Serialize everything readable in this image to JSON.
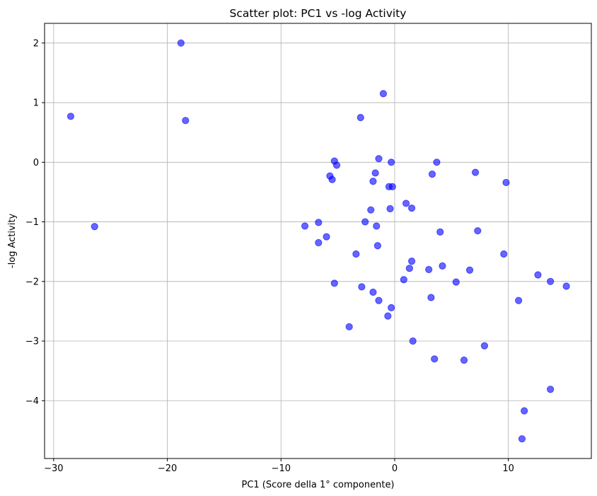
{
  "chart_data": {
    "type": "scatter",
    "title": "Scatter plot: PC1 vs -log Activity",
    "xlabel": "PC1 (Score della 1° componente)",
    "ylabel": "-log Activity",
    "xlim": [
      -30.8,
      17.3
    ],
    "ylim": [
      -4.97,
      2.33
    ],
    "xticks": [
      -30,
      -20,
      -10,
      0,
      10
    ],
    "xtick_labels": [
      "−30",
      "−20",
      "−10",
      "0",
      "10"
    ],
    "yticks": [
      2,
      1,
      0,
      -1,
      -2,
      -3,
      -4
    ],
    "ytick_labels": [
      "2",
      "1",
      "0",
      "−1",
      "−2",
      "−3",
      "−4"
    ],
    "grid": true,
    "marker_color": "#0000ff",
    "marker_alpha": 0.6,
    "points": [
      {
        "x": -28.5,
        "y": 0.77
      },
      {
        "x": -26.4,
        "y": -1.08
      },
      {
        "x": -18.8,
        "y": 2.0
      },
      {
        "x": -18.4,
        "y": 0.7
      },
      {
        "x": -7.9,
        "y": -1.07
      },
      {
        "x": -6.7,
        "y": -1.01
      },
      {
        "x": -6.7,
        "y": -1.35
      },
      {
        "x": -6.0,
        "y": -1.25
      },
      {
        "x": -5.7,
        "y": -0.23
      },
      {
        "x": -5.5,
        "y": -0.29
      },
      {
        "x": -5.3,
        "y": 0.02
      },
      {
        "x": -5.1,
        "y": -0.05
      },
      {
        "x": -5.3,
        "y": -2.03
      },
      {
        "x": -4.0,
        "y": -2.76
      },
      {
        "x": -3.4,
        "y": -1.54
      },
      {
        "x": -3.0,
        "y": 0.75
      },
      {
        "x": -2.9,
        "y": -2.09
      },
      {
        "x": -2.6,
        "y": -1.0
      },
      {
        "x": -2.1,
        "y": -0.8
      },
      {
        "x": -1.9,
        "y": -0.32
      },
      {
        "x": -1.9,
        "y": -2.18
      },
      {
        "x": -1.7,
        "y": -0.18
      },
      {
        "x": -1.6,
        "y": -1.07
      },
      {
        "x": -1.5,
        "y": -1.4
      },
      {
        "x": -1.4,
        "y": 0.06
      },
      {
        "x": -1.4,
        "y": -2.32
      },
      {
        "x": -1.0,
        "y": 1.15
      },
      {
        "x": -0.5,
        "y": -0.41
      },
      {
        "x": -0.6,
        "y": -2.58
      },
      {
        "x": -0.4,
        "y": -0.78
      },
      {
        "x": -0.3,
        "y": -2.44
      },
      {
        "x": -0.3,
        "y": 0.0
      },
      {
        "x": -0.2,
        "y": -0.41
      },
      {
        "x": 0.8,
        "y": -1.97
      },
      {
        "x": 1.0,
        "y": -0.69
      },
      {
        "x": 1.3,
        "y": -1.78
      },
      {
        "x": 1.5,
        "y": -0.77
      },
      {
        "x": 1.5,
        "y": -1.66
      },
      {
        "x": 1.6,
        "y": -3.0
      },
      {
        "x": 3.0,
        "y": -1.8
      },
      {
        "x": 3.2,
        "y": -2.27
      },
      {
        "x": 3.3,
        "y": -0.2
      },
      {
        "x": 3.5,
        "y": -3.3
      },
      {
        "x": 3.7,
        "y": 0.0
      },
      {
        "x": 4.0,
        "y": -1.17
      },
      {
        "x": 4.2,
        "y": -1.74
      },
      {
        "x": 5.4,
        "y": -2.01
      },
      {
        "x": 6.1,
        "y": -3.32
      },
      {
        "x": 6.6,
        "y": -1.81
      },
      {
        "x": 7.1,
        "y": -0.17
      },
      {
        "x": 7.3,
        "y": -1.15
      },
      {
        "x": 7.9,
        "y": -3.08
      },
      {
        "x": 9.6,
        "y": -1.54
      },
      {
        "x": 9.8,
        "y": -0.34
      },
      {
        "x": 10.9,
        "y": -2.32
      },
      {
        "x": 11.2,
        "y": -4.64
      },
      {
        "x": 11.4,
        "y": -4.17
      },
      {
        "x": 12.6,
        "y": -1.89
      },
      {
        "x": 13.7,
        "y": -2.0
      },
      {
        "x": 13.7,
        "y": -3.81
      },
      {
        "x": 15.1,
        "y": -2.08
      }
    ]
  }
}
